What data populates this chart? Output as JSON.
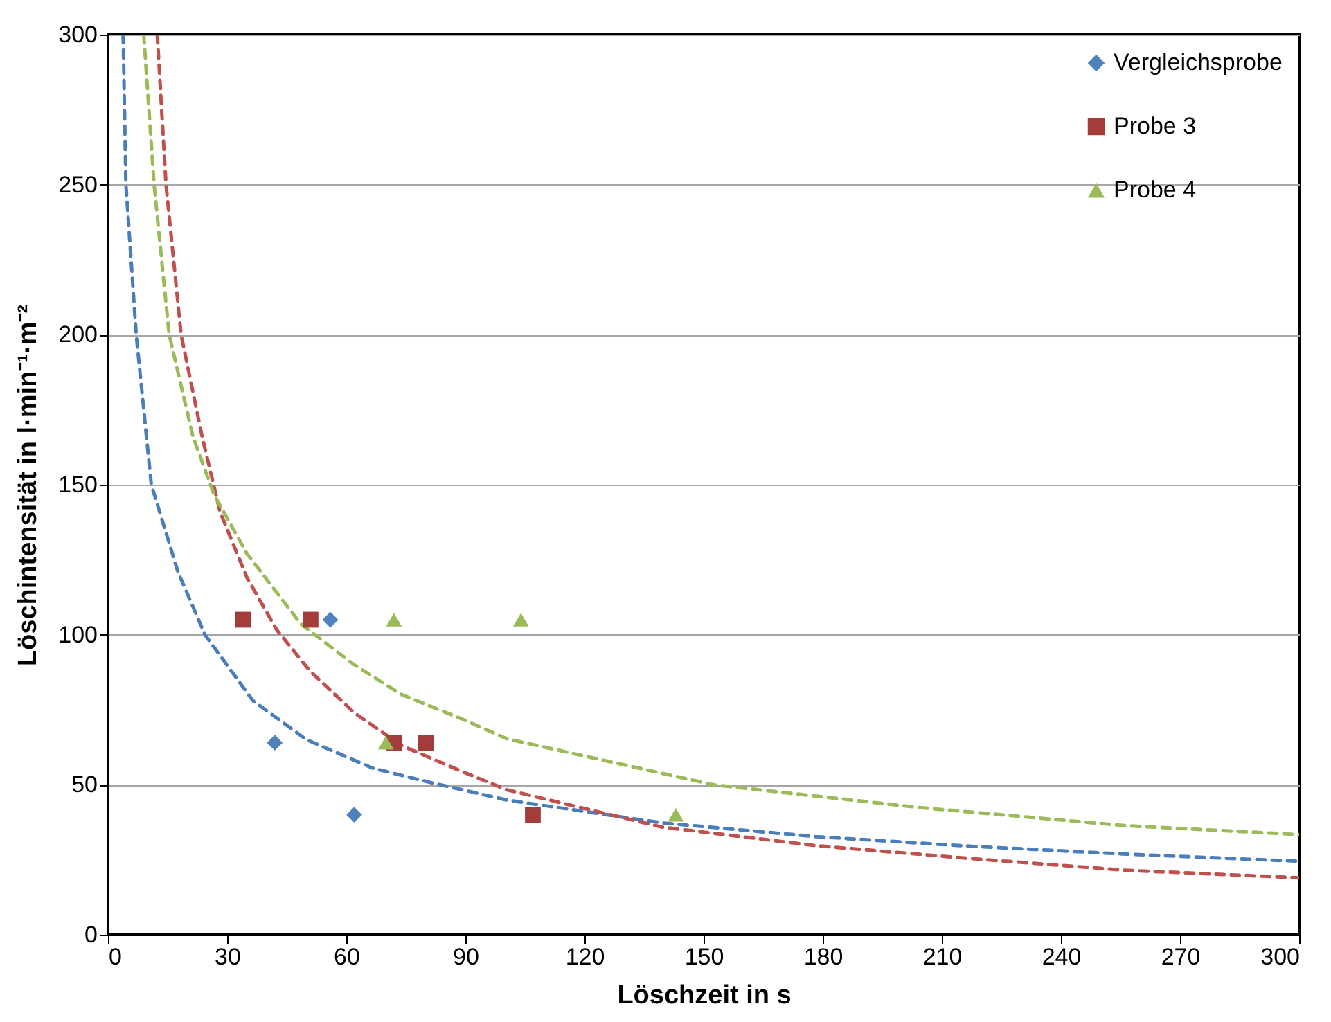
{
  "chart_data": {
    "type": "scatter",
    "xlabel": "Löschzeit in s",
    "ylabel": "Löschintensität in l·min⁻¹·m⁻²",
    "xlim": [
      0,
      300
    ],
    "xticks": [
      0,
      30,
      60,
      90,
      120,
      150,
      180,
      210,
      240,
      270,
      300
    ],
    "ylim": [
      0,
      300
    ],
    "yticks": [
      0,
      50,
      100,
      150,
      200,
      250,
      300
    ],
    "grid": "y",
    "legend": "top right",
    "series": [
      {
        "name": "Vergleichsprobe",
        "marker": "diamond",
        "color": "#4f81bd",
        "x": [
          42,
          62,
          56
        ],
        "values": [
          64,
          40,
          105
        ]
      },
      {
        "name": "Probe 3",
        "marker": "square",
        "color": "#a33d3a",
        "x": [
          34,
          51,
          72,
          80,
          107
        ],
        "values": [
          105,
          105,
          64,
          64,
          40
        ]
      },
      {
        "name": "Probe 4",
        "marker": "triangle",
        "color": "#9bbb59",
        "x": [
          72,
          104,
          70,
          143
        ],
        "values": [
          105,
          105,
          64,
          40
        ]
      },
      {
        "type": "line",
        "line_style": "dashed",
        "color": "#4a7ebb",
        "x": [
          3.8,
          4.5,
          7.1,
          10.9,
          17.6,
          24.4,
          36.5,
          50,
          66.7,
          81.7,
          100.5,
          139.5,
          178.4,
          217.4,
          256.4,
          300
        ],
        "values": [
          300,
          250,
          200,
          150,
          121,
          100,
          78,
          65,
          55.5,
          50.6,
          44.9,
          37.3,
          32.7,
          29.5,
          26.9,
          24.5
        ]
      },
      {
        "type": "line",
        "line_style": "dashed",
        "color": "#c0504d",
        "x": [
          12.4,
          14.6,
          18.4,
          23.7,
          28.2,
          35,
          42.5,
          50.8,
          62,
          74,
          89,
          100.5,
          139.5,
          178.4,
          217.4,
          256.4,
          300
        ],
        "values": [
          300,
          250,
          200,
          166,
          141,
          119,
          101.6,
          88,
          74,
          63,
          54.5,
          48.3,
          35.9,
          29.7,
          25.4,
          21.5,
          19
        ]
      },
      {
        "type": "line",
        "line_style": "dashed",
        "color": "#9bbb59",
        "x": [
          9,
          11.6,
          15.4,
          21.4,
          26.7,
          35,
          48.6,
          62,
          74,
          89,
          100.5,
          152.5,
          204.4,
          256,
          300
        ],
        "values": [
          300,
          250,
          200,
          166,
          146.7,
          127,
          103.5,
          90,
          80,
          72,
          65.3,
          50,
          42.4,
          36.4,
          33.4
        ]
      }
    ]
  }
}
